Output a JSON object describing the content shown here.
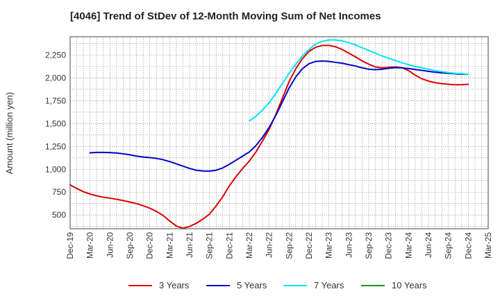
{
  "title": "[4046]  Trend of StDev of 12-Month Moving Sum of Net Incomes",
  "chart_data": {
    "type": "line",
    "title": "[4046]  Trend of StDev of 12-Month Moving Sum of Net Incomes",
    "ylabel": "Amount (million yen)",
    "xlabel": "",
    "x_tick_labels": [
      "Dec-19",
      "Mar-20",
      "Jun-20",
      "Sep-20",
      "Dec-20",
      "Mar-21",
      "Jun-21",
      "Sep-21",
      "Dec-21",
      "Mar-22",
      "Jun-22",
      "Sep-22",
      "Dec-22",
      "Mar-23",
      "Jun-23",
      "Sep-23",
      "Dec-23",
      "Mar-24",
      "Jun-24",
      "Sep-24",
      "Dec-24",
      "Mar-25"
    ],
    "y_ticks": [
      500,
      750,
      1000,
      1250,
      1500,
      1750,
      2000,
      2250
    ],
    "y_tick_labels": [
      "500",
      "750",
      "1,000",
      "1,250",
      "1,500",
      "1,750",
      "2,000",
      "2,250"
    ],
    "ylim": [
      350,
      2450
    ],
    "xlim": [
      "2019-12",
      "2025-03"
    ],
    "grid": true,
    "legend_position": "bottom",
    "series": [
      {
        "name": "3 Years",
        "color": "#dd0000",
        "x": [
          "2019-12",
          "2020-01",
          "2020-02",
          "2020-03",
          "2020-04",
          "2020-05",
          "2020-06",
          "2020-07",
          "2020-08",
          "2020-09",
          "2020-10",
          "2020-11",
          "2020-12",
          "2021-01",
          "2021-02",
          "2021-03",
          "2021-04",
          "2021-05",
          "2021-06",
          "2021-07",
          "2021-08",
          "2021-09",
          "2021-10",
          "2021-11",
          "2021-12",
          "2022-01",
          "2022-02",
          "2022-03",
          "2022-04",
          "2022-05",
          "2022-06",
          "2022-07",
          "2022-08",
          "2022-09",
          "2022-10",
          "2022-11",
          "2022-12",
          "2023-01",
          "2023-02",
          "2023-03",
          "2023-04",
          "2023-05",
          "2023-06",
          "2023-07",
          "2023-08",
          "2023-09",
          "2023-10",
          "2023-11",
          "2023-12",
          "2024-01",
          "2024-02",
          "2024-03",
          "2024-04",
          "2024-05",
          "2024-06",
          "2024-07",
          "2024-08",
          "2024-09",
          "2024-10",
          "2024-11",
          "2024-12"
        ],
        "values": [
          830,
          790,
          755,
          730,
          710,
          695,
          685,
          672,
          658,
          642,
          625,
          602,
          575,
          540,
          495,
          435,
          380,
          355,
          375,
          410,
          455,
          510,
          600,
          700,
          820,
          920,
          1010,
          1090,
          1190,
          1310,
          1440,
          1600,
          1780,
          1960,
          2100,
          2210,
          2290,
          2335,
          2355,
          2355,
          2340,
          2310,
          2270,
          2230,
          2185,
          2150,
          2120,
          2110,
          2115,
          2120,
          2110,
          2080,
          2030,
          1990,
          1965,
          1948,
          1937,
          1930,
          1925,
          1925,
          1930
        ]
      },
      {
        "name": "5 Years",
        "color": "#0000cc",
        "x": [
          "2020-03",
          "2020-04",
          "2020-05",
          "2020-06",
          "2020-07",
          "2020-08",
          "2020-09",
          "2020-10",
          "2020-11",
          "2020-12",
          "2021-01",
          "2021-02",
          "2021-03",
          "2021-04",
          "2021-05",
          "2021-06",
          "2021-07",
          "2021-08",
          "2021-09",
          "2021-10",
          "2021-11",
          "2021-12",
          "2022-01",
          "2022-02",
          "2022-03",
          "2022-04",
          "2022-05",
          "2022-06",
          "2022-07",
          "2022-08",
          "2022-09",
          "2022-10",
          "2022-11",
          "2022-12",
          "2023-01",
          "2023-02",
          "2023-03",
          "2023-04",
          "2023-05",
          "2023-06",
          "2023-07",
          "2023-08",
          "2023-09",
          "2023-10",
          "2023-11",
          "2023-12",
          "2024-01",
          "2024-02",
          "2024-03",
          "2024-04",
          "2024-05",
          "2024-06",
          "2024-07",
          "2024-08",
          "2024-09",
          "2024-10",
          "2024-11",
          "2024-12"
        ],
        "values": [
          1180,
          1185,
          1185,
          1183,
          1178,
          1170,
          1158,
          1145,
          1135,
          1128,
          1120,
          1105,
          1085,
          1060,
          1035,
          1010,
          990,
          982,
          980,
          990,
          1015,
          1055,
          1100,
          1145,
          1190,
          1260,
          1350,
          1460,
          1590,
          1740,
          1890,
          2010,
          2100,
          2155,
          2180,
          2185,
          2180,
          2170,
          2160,
          2145,
          2130,
          2110,
          2095,
          2090,
          2095,
          2105,
          2112,
          2110,
          2102,
          2092,
          2082,
          2072,
          2062,
          2055,
          2050,
          2045,
          2040,
          2040
        ]
      },
      {
        "name": "7 Years",
        "color": "#00e5ee",
        "x": [
          "2022-03",
          "2022-04",
          "2022-05",
          "2022-06",
          "2022-07",
          "2022-08",
          "2022-09",
          "2022-10",
          "2022-11",
          "2022-12",
          "2023-01",
          "2023-02",
          "2023-03",
          "2023-04",
          "2023-05",
          "2023-06",
          "2023-07",
          "2023-08",
          "2023-09",
          "2023-10",
          "2023-11",
          "2023-12",
          "2024-01",
          "2024-02",
          "2024-03",
          "2024-04",
          "2024-05",
          "2024-06",
          "2024-07",
          "2024-08",
          "2024-09",
          "2024-10",
          "2024-11",
          "2024-12"
        ],
        "values": [
          1530,
          1580,
          1650,
          1730,
          1830,
          1940,
          2050,
          2150,
          2240,
          2310,
          2370,
          2400,
          2415,
          2415,
          2405,
          2385,
          2360,
          2330,
          2300,
          2270,
          2240,
          2215,
          2190,
          2165,
          2145,
          2125,
          2110,
          2095,
          2080,
          2068,
          2058,
          2050,
          2045,
          2040
        ]
      },
      {
        "name": "10 Years",
        "color": "#228b22",
        "x": [],
        "values": []
      }
    ]
  }
}
